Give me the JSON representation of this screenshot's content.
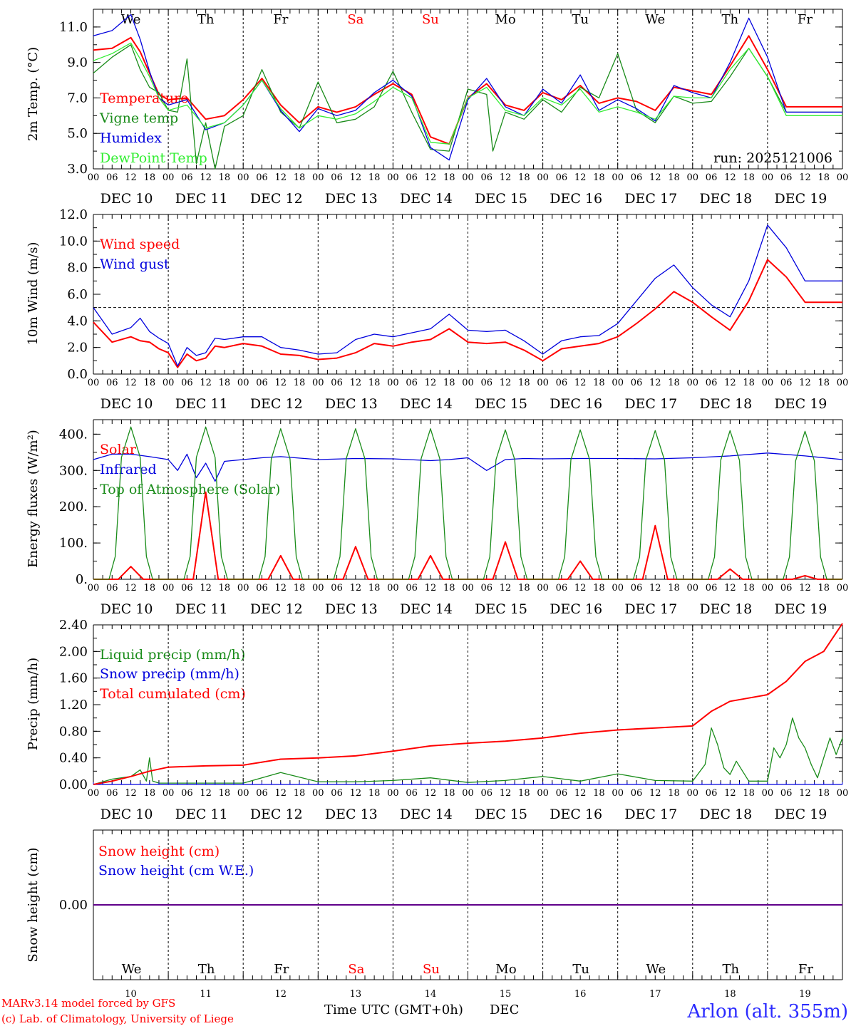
{
  "colors": {
    "red": "#ff0000",
    "dark_green": "#1a8c1a",
    "blue": "#0000dd",
    "light_green": "#33ee33",
    "axis": "#000000",
    "weekend": "#ff0000"
  },
  "days": [
    "We",
    "Th",
    "Fr",
    "Sa",
    "Su",
    "Mo",
    "Tu",
    "We",
    "Th",
    "Fr"
  ],
  "weekend_days": [
    3,
    4
  ],
  "dates": [
    "DEC 10",
    "DEC 11",
    "DEC 12",
    "DEC 13",
    "DEC 14",
    "DEC 15",
    "DEC 16",
    "DEC 17",
    "DEC 18",
    "DEC 19"
  ],
  "day_numbers": [
    "10",
    "11",
    "12",
    "13",
    "14",
    "15",
    "16",
    "17",
    "18",
    "19"
  ],
  "hour_ticks": [
    "00",
    "06",
    "12",
    "18"
  ],
  "final_hour": "00",
  "run_label": "run: 2025121006",
  "x_title": "Time UTC (GMT+0h)",
  "x_title_suffix": "DEC",
  "footer": {
    "line1": "MARv3.14 model forced by GFS",
    "line2": "(c) Lab. of Climatology, University of Liege",
    "station": "Arlon (alt. 355m)"
  },
  "chart_data": [
    {
      "id": "temp",
      "type": "line",
      "ylabel": "2m Temp. (°C)",
      "ylim": [
        3.0,
        12.0
      ],
      "yticks": [
        "3.0",
        "5.0",
        "7.0",
        "9.0",
        "11.0"
      ],
      "ytick_values": [
        3,
        5,
        7,
        9,
        11
      ],
      "x_unit": "hours since DEC 10 00 UTC",
      "xlim": [
        0,
        240
      ],
      "series": [
        {
          "name": "Temperature",
          "color": "red",
          "x": [
            0,
            6,
            12,
            15,
            18,
            21,
            24,
            30,
            36,
            42,
            48,
            54,
            60,
            66,
            72,
            78,
            84,
            90,
            96,
            102,
            108,
            114,
            120,
            126,
            132,
            138,
            144,
            150,
            156,
            162,
            168,
            174,
            180,
            186,
            192,
            198,
            204,
            210,
            216,
            222,
            228,
            234,
            240
          ],
          "y": [
            9.7,
            9.8,
            10.4,
            9.6,
            8.4,
            7.2,
            6.9,
            7.0,
            5.8,
            6.0,
            6.9,
            8.1,
            6.6,
            5.6,
            6.5,
            6.2,
            6.5,
            7.2,
            7.8,
            7.2,
            4.8,
            4.4,
            7.0,
            7.8,
            6.6,
            6.3,
            7.3,
            6.9,
            7.7,
            6.7,
            7.0,
            6.8,
            6.3,
            7.6,
            7.4,
            7.2,
            8.8,
            10.5,
            8.6,
            6.5,
            6.5,
            6.5,
            6.5
          ]
        },
        {
          "name": "Vigne temp",
          "color": "dark_green",
          "x": [
            0,
            6,
            12,
            15,
            18,
            21,
            24,
            27,
            30,
            33,
            36,
            39,
            42,
            48,
            54,
            60,
            66,
            72,
            78,
            84,
            90,
            96,
            102,
            108,
            114,
            120,
            126,
            128,
            132,
            138,
            144,
            150,
            156,
            162,
            168,
            174,
            180,
            186,
            192,
            198,
            204,
            210,
            216,
            222,
            228,
            234,
            240
          ],
          "y": [
            8.4,
            9.3,
            10.0,
            8.6,
            7.6,
            7.3,
            6.3,
            6.2,
            9.2,
            3.3,
            5.6,
            3.0,
            5.4,
            6.0,
            8.6,
            6.2,
            5.3,
            7.9,
            5.6,
            5.8,
            6.5,
            8.5,
            6.2,
            4.1,
            4.0,
            7.5,
            7.2,
            4.0,
            6.2,
            5.8,
            6.9,
            6.2,
            7.6,
            7.0,
            9.5,
            6.3,
            5.6,
            7.1,
            6.7,
            6.8,
            8.2,
            9.8,
            8.2,
            6.2,
            6.2,
            6.2,
            6.2
          ]
        },
        {
          "name": "Humidex",
          "color": "blue",
          "x": [
            0,
            6,
            12,
            15,
            18,
            21,
            24,
            30,
            36,
            42,
            48,
            54,
            60,
            66,
            72,
            78,
            84,
            90,
            96,
            102,
            108,
            114,
            120,
            126,
            132,
            138,
            144,
            150,
            156,
            162,
            168,
            174,
            180,
            186,
            192,
            198,
            204,
            210,
            216,
            222,
            228,
            234,
            240
          ],
          "y": [
            10.5,
            10.8,
            11.7,
            10.3,
            8.5,
            7.0,
            6.6,
            6.9,
            5.2,
            5.6,
            6.6,
            8.0,
            6.3,
            5.1,
            6.4,
            6.0,
            6.3,
            7.3,
            8.0,
            7.1,
            4.2,
            3.5,
            6.9,
            8.1,
            6.5,
            6.0,
            7.5,
            6.7,
            8.3,
            6.3,
            6.9,
            6.4,
            5.7,
            7.7,
            7.3,
            7.0,
            9.0,
            11.5,
            9.3,
            6.2,
            6.2,
            6.2,
            6.2
          ]
        },
        {
          "name": "DewPoint Temp",
          "color": "light_green",
          "x": [
            0,
            6,
            12,
            15,
            18,
            21,
            24,
            30,
            36,
            42,
            48,
            54,
            60,
            66,
            72,
            78,
            84,
            90,
            96,
            102,
            108,
            114,
            120,
            126,
            132,
            138,
            144,
            150,
            156,
            162,
            168,
            174,
            180,
            186,
            192,
            198,
            204,
            210,
            216,
            222,
            228,
            234,
            240
          ],
          "y": [
            9.1,
            9.5,
            10.1,
            9.2,
            8.2,
            7.0,
            6.3,
            6.6,
            5.3,
            5.6,
            6.6,
            8.0,
            6.4,
            5.3,
            6.0,
            5.8,
            6.1,
            6.8,
            7.6,
            7.0,
            4.5,
            4.4,
            7.0,
            7.6,
            6.3,
            6.0,
            7.0,
            6.6,
            7.5,
            6.2,
            6.5,
            6.2,
            5.8,
            7.1,
            7.0,
            7.0,
            8.6,
            9.8,
            8.2,
            6.0,
            6.0,
            6.0,
            6.0
          ]
        }
      ]
    },
    {
      "id": "wind",
      "type": "line",
      "ylabel": "10m Wind (m/s)",
      "ylim": [
        0,
        12.0
      ],
      "yticks": [
        "0.0",
        "2.0",
        "4.0",
        "6.0",
        "8.0",
        "10.0",
        "12.0"
      ],
      "ytick_values": [
        0,
        2,
        4,
        6,
        8,
        10,
        12
      ],
      "reference_line": 5.0,
      "x_unit": "hours since DEC 10 00 UTC",
      "xlim": [
        0,
        240
      ],
      "series": [
        {
          "name": "Wind speed",
          "color": "red",
          "x": [
            0,
            6,
            12,
            15,
            18,
            21,
            24,
            27,
            30,
            33,
            36,
            39,
            42,
            48,
            54,
            60,
            66,
            72,
            78,
            84,
            90,
            96,
            102,
            108,
            114,
            120,
            126,
            132,
            138,
            144,
            150,
            156,
            162,
            168,
            174,
            180,
            186,
            192,
            198,
            204,
            210,
            216,
            222,
            228,
            234,
            240
          ],
          "y": [
            3.9,
            2.4,
            2.8,
            2.5,
            2.4,
            1.9,
            1.6,
            0.5,
            1.5,
            1.0,
            1.2,
            2.1,
            2.0,
            2.3,
            2.1,
            1.5,
            1.4,
            1.1,
            1.2,
            1.6,
            2.3,
            2.1,
            2.4,
            2.6,
            3.4,
            2.4,
            2.3,
            2.4,
            1.8,
            1.0,
            1.9,
            2.1,
            2.3,
            2.8,
            3.8,
            4.9,
            6.2,
            5.4,
            4.3,
            3.3,
            5.5,
            8.6,
            7.3,
            5.4,
            5.4,
            5.4
          ]
        },
        {
          "name": "Wind gust",
          "color": "blue",
          "x": [
            0,
            6,
            12,
            15,
            18,
            21,
            24,
            27,
            30,
            33,
            36,
            39,
            42,
            48,
            54,
            60,
            66,
            72,
            78,
            84,
            90,
            96,
            102,
            108,
            114,
            120,
            126,
            132,
            138,
            144,
            150,
            156,
            162,
            168,
            174,
            180,
            186,
            192,
            198,
            204,
            210,
            216,
            222,
            228,
            234,
            240
          ],
          "y": [
            5.0,
            3.0,
            3.5,
            4.2,
            3.2,
            2.7,
            2.3,
            0.6,
            2.0,
            1.4,
            1.6,
            2.7,
            2.6,
            2.8,
            2.8,
            2.0,
            1.8,
            1.5,
            1.6,
            2.6,
            3.0,
            2.8,
            3.1,
            3.4,
            4.5,
            3.3,
            3.2,
            3.3,
            2.5,
            1.5,
            2.5,
            2.8,
            2.9,
            3.8,
            5.5,
            7.2,
            8.2,
            6.5,
            5.2,
            4.3,
            7.0,
            11.2,
            9.5,
            7.0,
            7.0,
            7.0
          ]
        }
      ]
    },
    {
      "id": "energy",
      "type": "line",
      "ylabel": "Energy fluxes (W/m²)",
      "ylim": [
        0,
        440
      ],
      "yticks": [
        "0.",
        "100.",
        "200.",
        "300.",
        "400."
      ],
      "ytick_values": [
        0,
        100,
        200,
        300,
        400
      ],
      "x_unit": "hours since DEC 10 00 UTC",
      "xlim": [
        0,
        240
      ],
      "daily_solar_peaks": [
        35,
        240,
        65,
        90,
        65,
        103,
        50,
        148,
        28,
        10
      ],
      "daily_toa_peaks": [
        420,
        420,
        415,
        415,
        415,
        412,
        412,
        410,
        410,
        408
      ],
      "series": [
        {
          "name": "Solar",
          "color": "red"
        },
        {
          "name": "Infrared",
          "color": "blue",
          "x": [
            0,
            6,
            12,
            18,
            24,
            27,
            30,
            33,
            36,
            39,
            42,
            48,
            54,
            60,
            72,
            84,
            96,
            108,
            114,
            120,
            126,
            132,
            138,
            144,
            156,
            168,
            180,
            192,
            204,
            216,
            228,
            240
          ],
          "y": [
            330,
            345,
            345,
            338,
            330,
            300,
            345,
            280,
            320,
            270,
            325,
            330,
            335,
            338,
            330,
            333,
            332,
            327,
            330,
            335,
            300,
            330,
            333,
            332,
            333,
            333,
            332,
            335,
            340,
            348,
            340,
            330
          ]
        },
        {
          "name": "Top of Atmosphere (Solar)",
          "color": "dark_green"
        }
      ]
    },
    {
      "id": "precip",
      "type": "line",
      "ylabel": "Precip (mm/h)",
      "ylim": [
        0,
        2.4
      ],
      "yticks": [
        "0.00",
        "0.40",
        "0.80",
        "1.20",
        "1.60",
        "2.00",
        "2.40"
      ],
      "ytick_values": [
        0,
        0.4,
        0.8,
        1.2,
        1.6,
        2.0,
        2.4
      ],
      "x_unit": "hours since DEC 10 00 UTC",
      "xlim": [
        0,
        240
      ],
      "series": [
        {
          "name": "Liquid precip (mm/h)",
          "color": "dark_green",
          "x": [
            0,
            6,
            12,
            15,
            17,
            18,
            19,
            21,
            24,
            36,
            48,
            60,
            72,
            84,
            96,
            108,
            120,
            132,
            144,
            156,
            168,
            180,
            192,
            196,
            198,
            200,
            202,
            204,
            206,
            210,
            212,
            214,
            216,
            218,
            220,
            222,
            224,
            226,
            228,
            230,
            232,
            234,
            236,
            238,
            240
          ],
          "y": [
            0.0,
            0.08,
            0.12,
            0.22,
            0.05,
            0.4,
            0.05,
            0.02,
            0.02,
            0.02,
            0.02,
            0.18,
            0.04,
            0.04,
            0.06,
            0.1,
            0.03,
            0.06,
            0.12,
            0.05,
            0.16,
            0.06,
            0.05,
            0.3,
            0.85,
            0.6,
            0.25,
            0.15,
            0.35,
            0.05,
            0.05,
            0.05,
            0.05,
            0.55,
            0.4,
            0.6,
            1.0,
            0.7,
            0.55,
            0.3,
            0.1,
            0.4,
            0.7,
            0.45,
            0.7
          ]
        },
        {
          "name": "Snow precip (mm/h)",
          "color": "blue",
          "x": [
            0,
            240
          ],
          "y": [
            0,
            0
          ]
        },
        {
          "name": "Total cumulated (cm)",
          "color": "red",
          "x": [
            0,
            6,
            12,
            18,
            24,
            36,
            48,
            60,
            72,
            84,
            96,
            108,
            120,
            132,
            144,
            156,
            168,
            180,
            192,
            198,
            204,
            210,
            216,
            222,
            228,
            234,
            240
          ],
          "y": [
            0.0,
            0.05,
            0.12,
            0.2,
            0.26,
            0.28,
            0.29,
            0.38,
            0.4,
            0.43,
            0.5,
            0.58,
            0.62,
            0.65,
            0.7,
            0.77,
            0.82,
            0.85,
            0.88,
            1.1,
            1.25,
            1.3,
            1.35,
            1.55,
            1.85,
            2.0,
            2.42
          ]
        }
      ]
    },
    {
      "id": "snow",
      "type": "line",
      "ylabel": "Snow height (cm)",
      "ylim": [
        -1,
        1
      ],
      "yticks": [
        "0.00"
      ],
      "ytick_values": [
        0
      ],
      "x_unit": "hours since DEC 10 00 UTC",
      "xlim": [
        0,
        240
      ],
      "series": [
        {
          "name": "Snow height (cm)",
          "color": "red",
          "x": [
            0,
            240
          ],
          "y": [
            0,
            0
          ]
        },
        {
          "name": "Snow height (cm W.E.)",
          "color": "blue",
          "x": [
            0,
            240
          ],
          "y": [
            0,
            0
          ]
        }
      ]
    }
  ]
}
